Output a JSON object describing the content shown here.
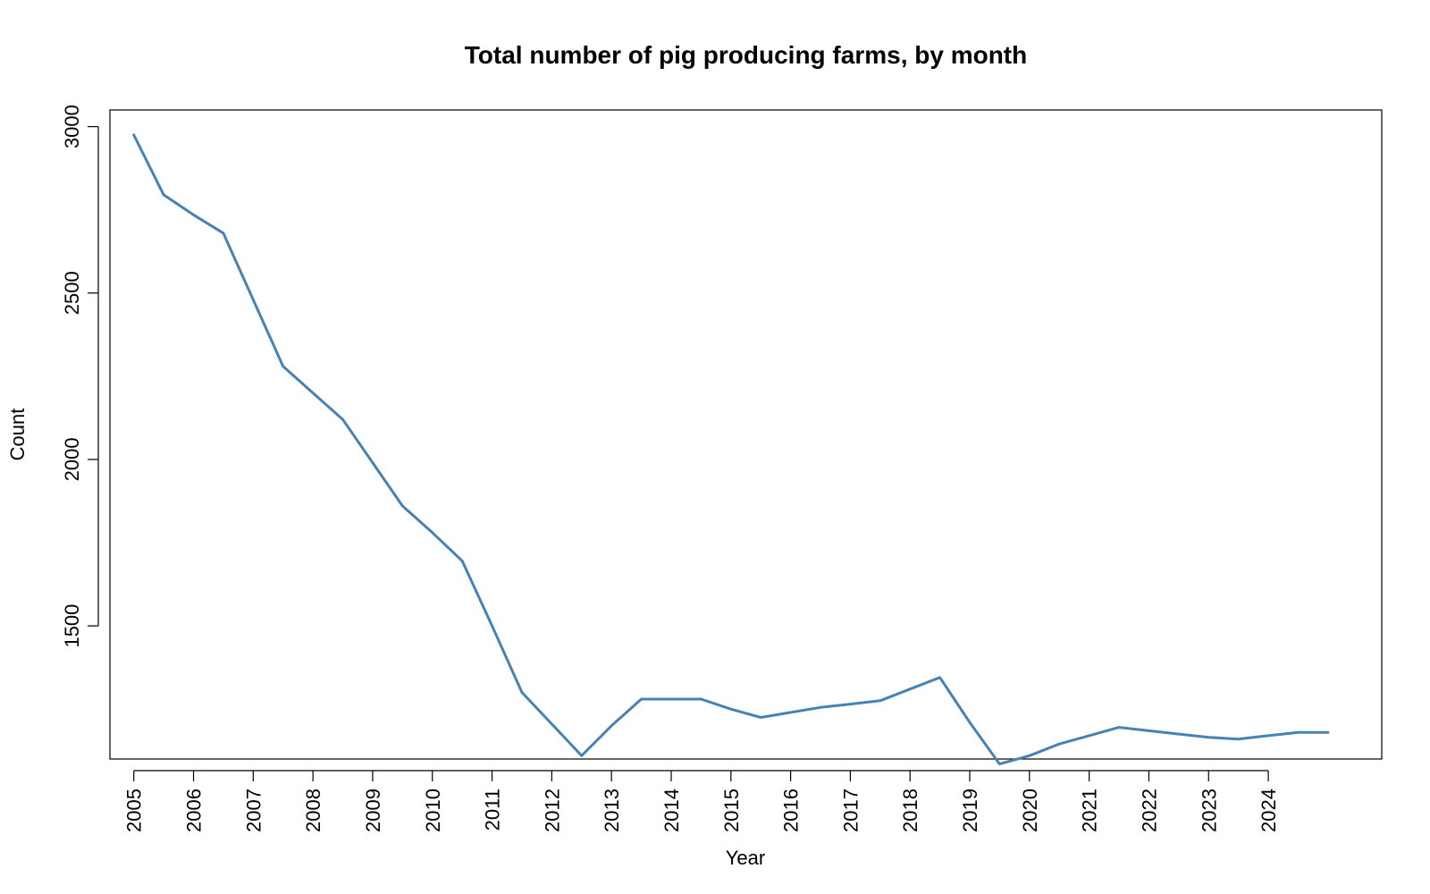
{
  "chart_data": {
    "type": "line",
    "title": "Total number of pig producing farms, by month",
    "xlabel": "Year",
    "ylabel": "Count",
    "xlim": [
      2004.6,
      2025.9
    ],
    "ylim": [
      1100,
      3050
    ],
    "x_ticks": [
      "2005",
      "2006",
      "2007",
      "2008",
      "2009",
      "2010",
      "2011",
      "2012",
      "2013",
      "2014",
      "2015",
      "2016",
      "2017",
      "2018",
      "2019",
      "2020",
      "2021",
      "2022",
      "2023",
      "2024"
    ],
    "y_ticks": [
      1500,
      2000,
      2500,
      3000
    ],
    "grid": false,
    "legend": "none",
    "series": [
      {
        "color": "#4682B4",
        "x": [
          "2005-01",
          "2005-07",
          "2006-01",
          "2006-07",
          "2007-01",
          "2007-07",
          "2008-01",
          "2008-07",
          "2009-01",
          "2009-07",
          "2010-01",
          "2010-07",
          "2011-01",
          "2011-07",
          "2012-01",
          "2012-07",
          "2013-01",
          "2013-07",
          "2014-01",
          "2014-07",
          "2015-01",
          "2015-07",
          "2016-01",
          "2016-07",
          "2017-01",
          "2017-07",
          "2018-01",
          "2018-07",
          "2019-01",
          "2019-07",
          "2020-01",
          "2020-07",
          "2021-01",
          "2021-07",
          "2022-01",
          "2022-07",
          "2023-01",
          "2023-07",
          "2024-01",
          "2024-07",
          "2025-01"
        ],
        "values": [
          2975,
          2795,
          2735,
          2680,
          2480,
          2280,
          2200,
          2120,
          1990,
          1860,
          1780,
          1695,
          1500,
          1300,
          1205,
          1110,
          1200,
          1280,
          1280,
          1280,
          1250,
          1225,
          1240,
          1255,
          1265,
          1275,
          1310,
          1345,
          1210,
          1085,
          1110,
          1145,
          1170,
          1195,
          1185,
          1175,
          1165,
          1160,
          1170,
          1180,
          1180
        ]
      }
    ]
  }
}
